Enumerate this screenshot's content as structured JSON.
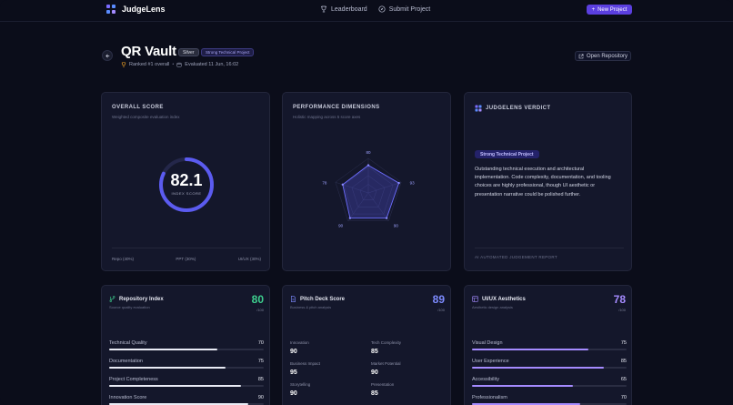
{
  "nav": {
    "brand": "JudgeLens",
    "links": [
      {
        "label": "Leaderboard",
        "icon": "trophy-icon"
      },
      {
        "label": "Submit Project",
        "icon": "compass-icon"
      }
    ],
    "new_project": "New Project"
  },
  "header": {
    "title": "QR Vault",
    "tier": "Silver",
    "tag": "Strong Technical Project",
    "rank": "Ranked #1 overall",
    "separator": "•",
    "evaluated": "Evaluated 11 Jun, 16:02",
    "open_repo": "Open Repository"
  },
  "overall": {
    "title": "OVERALL SCORE",
    "subtitle": "Weighted composite evaluation index",
    "score": "82.1",
    "score_label": "INDEX SCORE",
    "score_fraction": 0.821,
    "weights": [
      "Repo (40%)",
      "PPT (30%)",
      "UI/UX (30%)"
    ]
  },
  "performance": {
    "title": "PERFORMANCE DIMENSIONS",
    "subtitle": "Holistic mapping across 5 score axes",
    "chart_data": {
      "type": "radar",
      "axes": [
        "",
        "",
        "",
        "",
        ""
      ],
      "values": [
        80,
        93,
        90,
        90,
        78
      ],
      "value_labels": [
        "80",
        "93",
        "90",
        "90",
        "78"
      ],
      "range": [
        0,
        100
      ]
    }
  },
  "verdict": {
    "title": "JUDGELENS VERDICT",
    "badge": "Strong Technical Project",
    "text": "Outstanding technical execution and architectural implementation. Code complexity, documentation, and tooling choices are highly professional, though UI aesthetic or presentation narrative could be polished further.",
    "footer": "AI AUTOMATED JUDGEMENT REPORT"
  },
  "repo": {
    "title": "Repository Index",
    "subtitle": "Source quality evaluation",
    "score": "80",
    "max": "/100",
    "color": "#3ecf8e",
    "bars": [
      {
        "label": "Technical Quality",
        "value": "70",
        "fraction": 0.7
      },
      {
        "label": "Documentation",
        "value": "75",
        "fraction": 0.75
      },
      {
        "label": "Project Completeness",
        "value": "85",
        "fraction": 0.85
      },
      {
        "label": "Innovation Score",
        "value": "90",
        "fraction": 0.9
      }
    ]
  },
  "pitch": {
    "title": "Pitch Deck Score",
    "subtitle": "Business & pitch analysis",
    "score": "89",
    "max": "/100",
    "color": "#7d8bff",
    "metrics": [
      {
        "label": "Innovation",
        "value": "90"
      },
      {
        "label": "Tech Complexity",
        "value": "85"
      },
      {
        "label": "Business Impact",
        "value": "95"
      },
      {
        "label": "Market Potential",
        "value": "90"
      },
      {
        "label": "Storytelling",
        "value": "90"
      },
      {
        "label": "Presentation",
        "value": "85"
      }
    ]
  },
  "uiux": {
    "title": "UI/UX Aesthetics",
    "subtitle": "Aesthetic design analysis",
    "score": "78",
    "max": "/100",
    "color": "#a58bff",
    "bars": [
      {
        "label": "Visual Design",
        "value": "75",
        "fraction": 0.75
      },
      {
        "label": "User Experience",
        "value": "85",
        "fraction": 0.85
      },
      {
        "label": "Accessibility",
        "value": "65",
        "fraction": 0.65
      },
      {
        "label": "Professionalism",
        "value": "70",
        "fraction": 0.7
      }
    ]
  }
}
